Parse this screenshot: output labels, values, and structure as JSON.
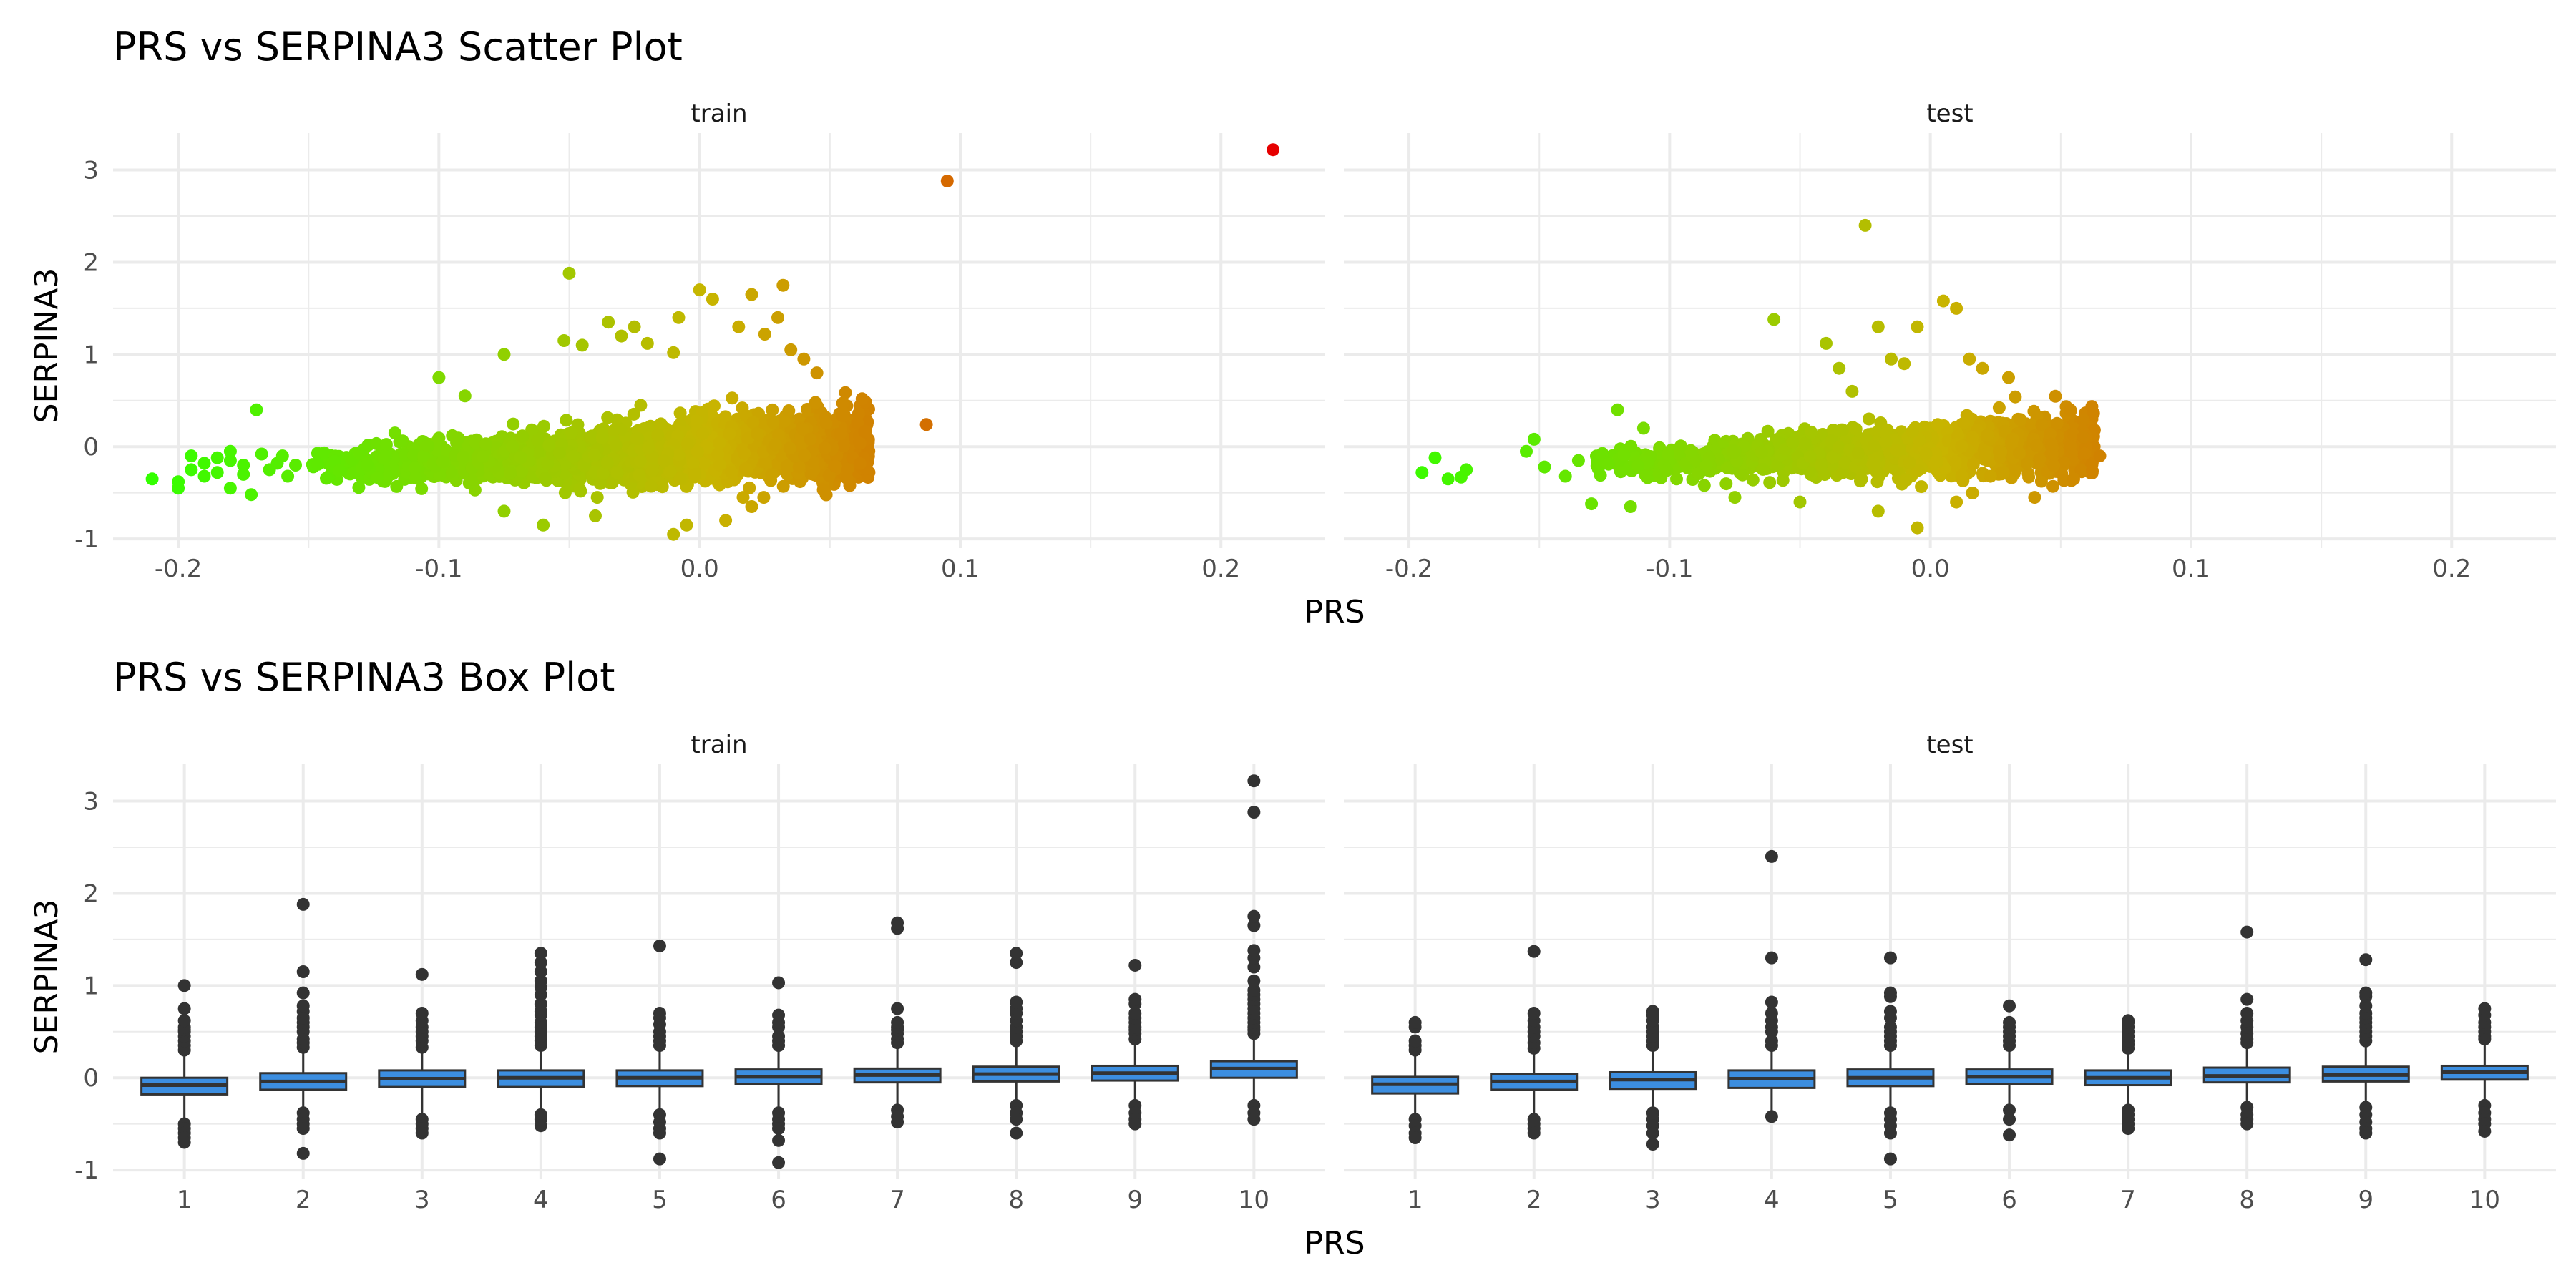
{
  "chart_data": [
    {
      "type": "scatter",
      "title": "PRS vs SERPINA3 Scatter Plot",
      "xlabel": "PRS",
      "ylabel": "SERPINA3",
      "xlim": [
        -0.225,
        0.24
      ],
      "ylim": [
        -1.1,
        3.4
      ],
      "x_ticks": [
        "-0.2",
        "-0.1",
        "0.0",
        "0.1",
        "0.2"
      ],
      "y_ticks": [
        "-1",
        "0",
        "1",
        "2",
        "3"
      ],
      "color_scale": {
        "low": "#33ff00",
        "mid": "#c8b400",
        "high": "#e60000",
        "range": [
          -0.21,
          0.22
        ]
      },
      "grid": true,
      "legend": "none",
      "panels": [
        {
          "name": "train",
          "cloud": {
            "x_min": -0.15,
            "x_max": 0.065,
            "center_y": 0.0,
            "spread_y": 0.18
          },
          "points": [
            [
              -0.21,
              -0.35
            ],
            [
              -0.2,
              -0.45
            ],
            [
              -0.2,
              -0.38
            ],
            [
              -0.195,
              -0.25
            ],
            [
              -0.195,
              -0.1
            ],
            [
              -0.19,
              -0.18
            ],
            [
              -0.19,
              -0.32
            ],
            [
              -0.185,
              -0.12
            ],
            [
              -0.185,
              -0.28
            ],
            [
              -0.18,
              -0.15
            ],
            [
              -0.18,
              -0.05
            ],
            [
              -0.18,
              -0.45
            ],
            [
              -0.175,
              -0.2
            ],
            [
              -0.175,
              -0.3
            ],
            [
              -0.172,
              -0.52
            ],
            [
              -0.17,
              0.4
            ],
            [
              -0.168,
              -0.08
            ],
            [
              -0.165,
              -0.25
            ],
            [
              -0.162,
              -0.18
            ],
            [
              -0.16,
              -0.1
            ],
            [
              -0.158,
              -0.32
            ],
            [
              -0.155,
              -0.2
            ],
            [
              -0.075,
              1.0
            ],
            [
              -0.1,
              0.75
            ],
            [
              -0.09,
              0.55
            ],
            [
              -0.05,
              1.88
            ],
            [
              -0.052,
              1.15
            ],
            [
              -0.045,
              1.1
            ],
            [
              -0.035,
              1.35
            ],
            [
              -0.03,
              1.2
            ],
            [
              -0.025,
              1.3
            ],
            [
              -0.02,
              1.12
            ],
            [
              -0.01,
              1.02
            ],
            [
              -0.008,
              1.4
            ],
            [
              0.0,
              1.7
            ],
            [
              0.005,
              1.6
            ],
            [
              0.015,
              1.3
            ],
            [
              0.02,
              1.65
            ],
            [
              0.025,
              1.22
            ],
            [
              0.03,
              1.4
            ],
            [
              0.032,
              1.75
            ],
            [
              0.035,
              1.05
            ],
            [
              0.04,
              0.95
            ],
            [
              0.045,
              0.8
            ],
            [
              -0.06,
              -0.85
            ],
            [
              -0.075,
              -0.7
            ],
            [
              -0.01,
              -0.95
            ],
            [
              -0.005,
              -0.85
            ],
            [
              0.01,
              -0.8
            ],
            [
              -0.04,
              -0.75
            ],
            [
              0.02,
              -0.65
            ],
            [
              0.087,
              0.24
            ],
            [
              0.095,
              2.88
            ],
            [
              0.22,
              3.22
            ]
          ]
        },
        {
          "name": "test",
          "cloud": {
            "x_min": -0.13,
            "x_max": 0.063,
            "center_y": 0.0,
            "spread_y": 0.16
          },
          "points": [
            [
              -0.195,
              -0.28
            ],
            [
              -0.19,
              -0.12
            ],
            [
              -0.185,
              -0.35
            ],
            [
              -0.18,
              -0.33
            ],
            [
              -0.178,
              -0.25
            ],
            [
              -0.155,
              -0.05
            ],
            [
              -0.152,
              0.08
            ],
            [
              -0.148,
              -0.22
            ],
            [
              -0.14,
              -0.32
            ],
            [
              -0.135,
              -0.15
            ],
            [
              -0.13,
              -0.62
            ],
            [
              -0.12,
              0.4
            ],
            [
              -0.115,
              -0.65
            ],
            [
              -0.11,
              0.2
            ],
            [
              -0.06,
              1.38
            ],
            [
              -0.04,
              1.12
            ],
            [
              -0.035,
              0.85
            ],
            [
              -0.03,
              0.6
            ],
            [
              -0.025,
              2.4
            ],
            [
              -0.02,
              1.3
            ],
            [
              -0.015,
              0.95
            ],
            [
              -0.01,
              0.9
            ],
            [
              -0.005,
              1.3
            ],
            [
              0.005,
              1.58
            ],
            [
              0.01,
              1.5
            ],
            [
              0.015,
              0.95
            ],
            [
              0.02,
              0.85
            ],
            [
              0.03,
              0.75
            ],
            [
              -0.02,
              -0.7
            ],
            [
              -0.005,
              -0.88
            ],
            [
              0.01,
              -0.6
            ],
            [
              0.04,
              -0.55
            ],
            [
              0.055,
              -0.35
            ],
            [
              0.065,
              -0.1
            ],
            [
              -0.075,
              -0.55
            ],
            [
              -0.05,
              -0.6
            ]
          ]
        }
      ]
    },
    {
      "type": "box",
      "title": "PRS vs SERPINA3 Box Plot",
      "xlabel": "PRS",
      "ylabel": "SERPINA3",
      "categories": [
        "1",
        "2",
        "3",
        "4",
        "5",
        "6",
        "7",
        "8",
        "9",
        "10"
      ],
      "ylim": [
        -1.1,
        3.4
      ],
      "y_ticks": [
        "-1",
        "0",
        "1",
        "2",
        "3"
      ],
      "box_color": "#3c8ee0",
      "grid": true,
      "legend": "none",
      "panels": [
        {
          "name": "train",
          "boxes": [
            {
              "q1": -0.18,
              "median": -0.08,
              "q3": 0.0,
              "lo": -0.45,
              "hi": 0.28,
              "outliers": [
                0.3,
                0.35,
                0.4,
                0.45,
                0.5,
                0.52,
                0.55,
                0.62,
                0.75,
                1.0,
                -0.5,
                -0.55,
                -0.6,
                -0.65,
                -0.7
              ]
            },
            {
              "q1": -0.13,
              "median": -0.04,
              "q3": 0.05,
              "lo": -0.35,
              "hi": 0.3,
              "outliers": [
                0.33,
                0.38,
                0.42,
                0.5,
                0.55,
                0.6,
                0.65,
                0.72,
                0.78,
                0.92,
                1.15,
                1.88,
                -0.38,
                -0.45,
                -0.5,
                -0.55,
                -0.82
              ]
            },
            {
              "q1": -0.1,
              "median": -0.01,
              "q3": 0.08,
              "lo": -0.4,
              "hi": 0.3,
              "outliers": [
                0.33,
                0.4,
                0.45,
                0.5,
                0.55,
                0.62,
                0.7,
                1.12,
                -0.45,
                -0.5,
                -0.55,
                -0.6
              ]
            },
            {
              "q1": -0.1,
              "median": 0.0,
              "q3": 0.08,
              "lo": -0.38,
              "hi": 0.32,
              "outliers": [
                0.35,
                0.4,
                0.45,
                0.5,
                0.55,
                0.6,
                0.68,
                0.72,
                0.8,
                0.9,
                0.98,
                1.05,
                1.15,
                1.25,
                1.35,
                -0.4,
                -0.45,
                -0.52
              ]
            },
            {
              "q1": -0.09,
              "median": 0.0,
              "q3": 0.08,
              "lo": -0.38,
              "hi": 0.32,
              "outliers": [
                0.35,
                0.4,
                0.45,
                0.5,
                0.58,
                0.65,
                0.7,
                1.43,
                -0.4,
                -0.48,
                -0.55,
                -0.6,
                -0.88
              ]
            },
            {
              "q1": -0.07,
              "median": 0.01,
              "q3": 0.09,
              "lo": -0.35,
              "hi": 0.33,
              "outliers": [
                0.35,
                0.4,
                0.45,
                0.55,
                0.6,
                0.68,
                1.03,
                -0.38,
                -0.45,
                -0.5,
                -0.55,
                -0.68,
                -0.92
              ]
            },
            {
              "q1": -0.05,
              "median": 0.03,
              "q3": 0.1,
              "lo": -0.33,
              "hi": 0.35,
              "outliers": [
                0.38,
                0.42,
                0.48,
                0.52,
                0.55,
                0.6,
                0.75,
                1.62,
                1.68,
                -0.35,
                -0.42,
                -0.48
              ]
            },
            {
              "q1": -0.04,
              "median": 0.04,
              "q3": 0.12,
              "lo": -0.3,
              "hi": 0.38,
              "outliers": [
                0.4,
                0.45,
                0.5,
                0.55,
                0.62,
                0.7,
                0.75,
                0.82,
                1.25,
                1.35,
                -0.3,
                -0.38,
                -0.45,
                -0.6
              ]
            },
            {
              "q1": -0.03,
              "median": 0.05,
              "q3": 0.13,
              "lo": -0.28,
              "hi": 0.4,
              "outliers": [
                0.42,
                0.48,
                0.52,
                0.55,
                0.6,
                0.65,
                0.7,
                0.8,
                0.85,
                1.22,
                -0.3,
                -0.38,
                -0.45,
                -0.5
              ]
            },
            {
              "q1": 0.0,
              "median": 0.1,
              "q3": 0.18,
              "lo": -0.25,
              "hi": 0.45,
              "outliers": [
                0.48,
                0.52,
                0.55,
                0.6,
                0.65,
                0.7,
                0.75,
                0.8,
                0.85,
                0.9,
                0.95,
                1.05,
                1.2,
                1.3,
                1.38,
                1.65,
                1.75,
                2.88,
                3.22,
                -0.3,
                -0.38,
                -0.45
              ]
            }
          ]
        },
        {
          "name": "test",
          "boxes": [
            {
              "q1": -0.17,
              "median": -0.07,
              "q3": 0.01,
              "lo": -0.4,
              "hi": 0.25,
              "outliers": [
                0.3,
                0.35,
                0.4,
                0.55,
                0.6,
                -0.45,
                -0.52,
                -0.6,
                -0.65
              ]
            },
            {
              "q1": -0.13,
              "median": -0.04,
              "q3": 0.04,
              "lo": -0.38,
              "hi": 0.28,
              "outliers": [
                0.32,
                0.38,
                0.45,
                0.5,
                0.55,
                0.62,
                0.7,
                1.37,
                -0.45,
                -0.5,
                -0.55,
                -0.6
              ]
            },
            {
              "q1": -0.12,
              "median": -0.02,
              "q3": 0.06,
              "lo": -0.35,
              "hi": 0.3,
              "outliers": [
                0.35,
                0.4,
                0.45,
                0.5,
                0.55,
                0.62,
                0.68,
                0.72,
                -0.38,
                -0.45,
                -0.52,
                -0.6,
                -0.72
              ]
            },
            {
              "q1": -0.11,
              "median": -0.01,
              "q3": 0.08,
              "lo": -0.38,
              "hi": 0.3,
              "outliers": [
                0.35,
                0.4,
                0.5,
                0.55,
                0.62,
                0.7,
                0.82,
                1.3,
                2.4,
                -0.42
              ]
            },
            {
              "q1": -0.09,
              "median": 0.0,
              "q3": 0.09,
              "lo": -0.35,
              "hi": 0.32,
              "outliers": [
                0.35,
                0.4,
                0.45,
                0.5,
                0.55,
                0.65,
                0.72,
                0.88,
                0.92,
                1.3,
                -0.38,
                -0.45,
                -0.52,
                -0.6,
                -0.88
              ]
            },
            {
              "q1": -0.07,
              "median": 0.01,
              "q3": 0.09,
              "lo": -0.32,
              "hi": 0.32,
              "outliers": [
                0.35,
                0.4,
                0.45,
                0.5,
                0.55,
                0.6,
                0.78,
                -0.35,
                -0.45,
                -0.62
              ]
            },
            {
              "q1": -0.08,
              "median": 0.0,
              "q3": 0.08,
              "lo": -0.33,
              "hi": 0.3,
              "outliers": [
                0.32,
                0.36,
                0.4,
                0.45,
                0.5,
                0.55,
                0.6,
                0.62,
                -0.35,
                -0.4,
                -0.45,
                -0.5,
                -0.55
              ]
            },
            {
              "q1": -0.05,
              "median": 0.02,
              "q3": 0.11,
              "lo": -0.3,
              "hi": 0.36,
              "outliers": [
                0.38,
                0.42,
                0.48,
                0.55,
                0.62,
                0.7,
                0.85,
                1.58,
                -0.32,
                -0.4,
                -0.45,
                -0.5
              ]
            },
            {
              "q1": -0.04,
              "median": 0.03,
              "q3": 0.12,
              "lo": -0.3,
              "hi": 0.38,
              "outliers": [
                0.4,
                0.45,
                0.5,
                0.55,
                0.6,
                0.65,
                0.7,
                0.78,
                0.88,
                0.92,
                1.28,
                -0.32,
                -0.4,
                -0.48,
                -0.55,
                -0.6
              ]
            },
            {
              "q1": -0.02,
              "median": 0.06,
              "q3": 0.13,
              "lo": -0.26,
              "hi": 0.4,
              "outliers": [
                0.42,
                0.45,
                0.5,
                0.55,
                0.6,
                0.68,
                0.75,
                -0.3,
                -0.38,
                -0.45,
                -0.5,
                -0.58
              ]
            }
          ]
        }
      ]
    }
  ]
}
